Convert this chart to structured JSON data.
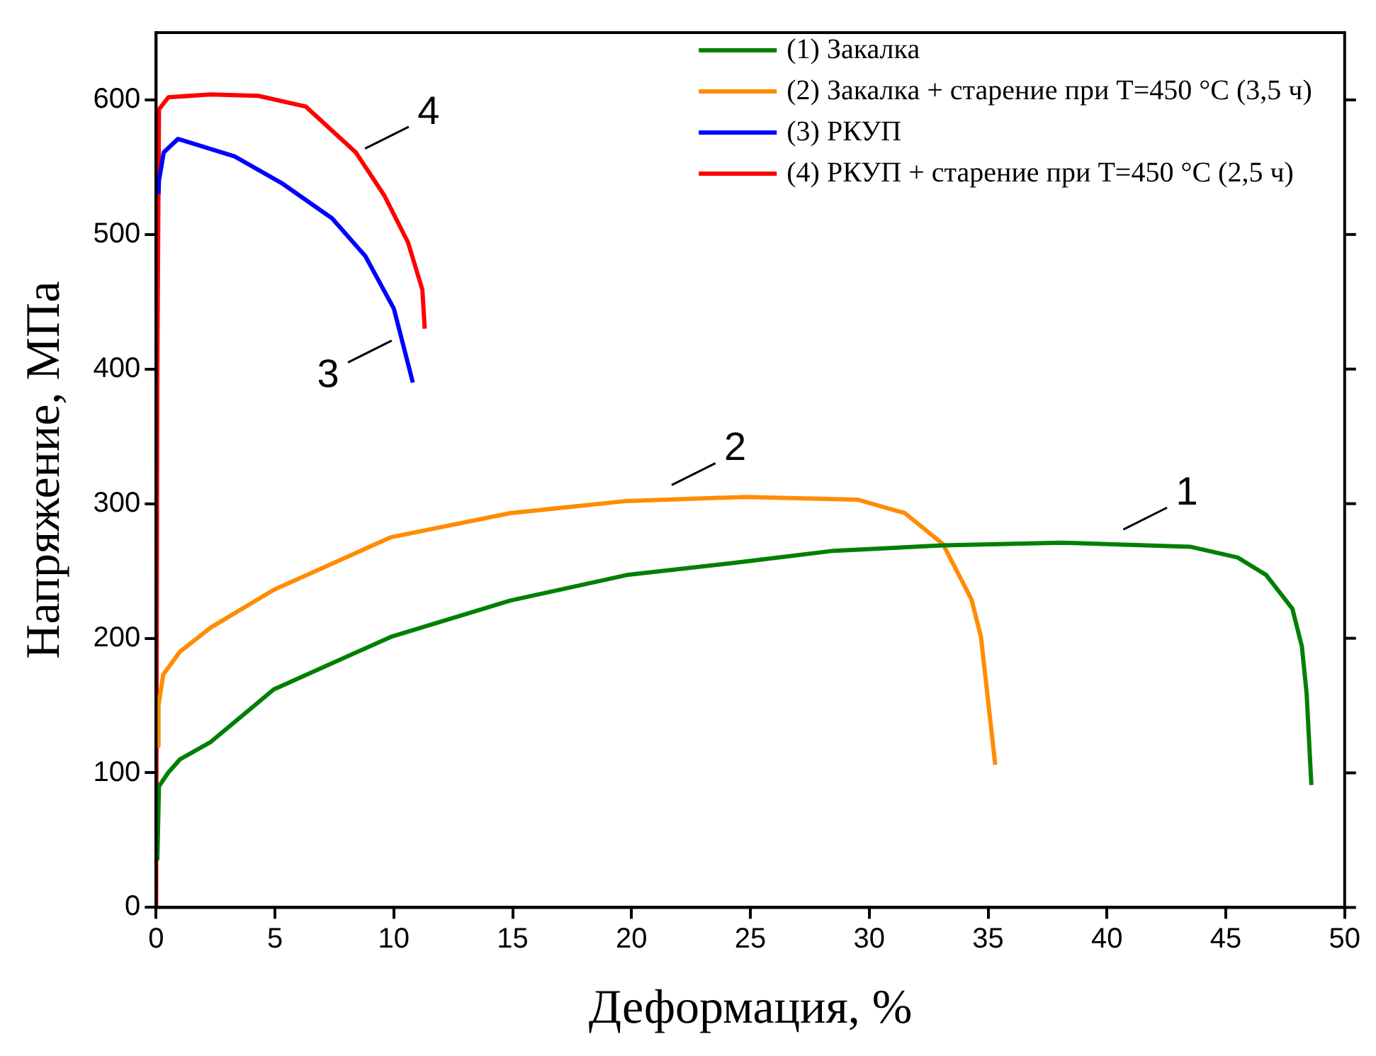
{
  "chart_data": {
    "type": "line",
    "xlabel": "Деформация, %",
    "ylabel": "Напряжение, МПа",
    "xlim": [
      0,
      50
    ],
    "ylim": [
      0,
      650
    ],
    "xticks": [
      0,
      5,
      10,
      15,
      20,
      25,
      30,
      35,
      40,
      45,
      50
    ],
    "yticks": [
      0,
      100,
      200,
      300,
      400,
      500,
      600
    ],
    "grid": false,
    "legend": "top right",
    "marker": "none",
    "line_style": "solid",
    "series": [
      {
        "name": "(1) Закалка",
        "color": "#008000",
        "x": [
          0.05,
          0.12,
          0.5,
          1,
          2.3,
          4.95,
          9.87,
          14.9,
          19.8,
          24.8,
          28.5,
          33.1,
          38.1,
          43.5,
          45.5,
          46.7,
          47.8,
          48.2,
          48.4,
          48.6
        ],
        "values": [
          35,
          90,
          100,
          110,
          123,
          162,
          201,
          228,
          247,
          257,
          265,
          269,
          271,
          268,
          260,
          247,
          222,
          194,
          159,
          91
        ]
      },
      {
        "name": "(2) Закалка + старение при T=450 °C (3,5 ч)",
        "color": "#ff8c00",
        "x": [
          0.05,
          0.1,
          0.3,
          1,
          2.3,
          4.95,
          9.87,
          14.9,
          19.8,
          24.8,
          29.5,
          31.5,
          33.1,
          34.3,
          34.7,
          35.3
        ],
        "values": [
          120,
          150,
          173,
          190,
          208,
          236,
          275,
          293,
          302,
          305,
          303,
          293,
          270,
          229,
          201,
          106
        ]
      },
      {
        "name": "(3) РКУП",
        "color": "#0000ff",
        "x": [
          0.1,
          0.12,
          0.32,
          0.92,
          3.3,
          5.3,
          7.4,
          8.8,
          10,
          10.8
        ],
        "values": [
          530,
          540,
          561,
          571,
          558,
          538,
          512,
          484,
          445,
          390
        ]
      },
      {
        "name": "(4) РКУП + старение при T=450 °C (2,5 ч)",
        "color": "#ff0000",
        "x": [
          0,
          0.05,
          0.12,
          0.52,
          2.3,
          4.3,
          6.3,
          8.4,
          9.6,
          10.6,
          11.2,
          11.3
        ],
        "values": [
          0,
          400,
          593,
          602,
          604,
          603,
          595,
          561,
          529,
          494,
          459,
          430
        ]
      }
    ],
    "annotations": [
      {
        "text": "1",
        "x": 40.5,
        "y": 272
      },
      {
        "text": "2",
        "x": 21.5,
        "y": 305
      },
      {
        "text": "3",
        "x": 10.1,
        "y": 430
      },
      {
        "text": "4",
        "x": 8.6,
        "y": 555
      }
    ]
  }
}
